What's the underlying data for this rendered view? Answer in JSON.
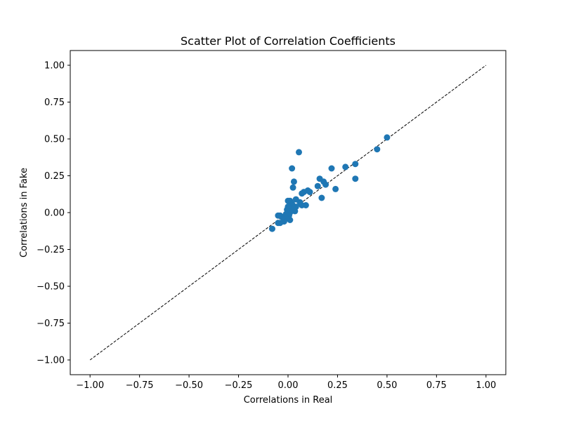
{
  "chart_data": {
    "type": "scatter",
    "title": "Scatter Plot of Correlation Coefficients",
    "xlabel": "Correlations in Real",
    "ylabel": "Correlations in Fake",
    "xlim": [
      -1.1,
      1.1
    ],
    "ylim": [
      -1.1,
      1.1
    ],
    "xticks": [
      -1.0,
      -0.75,
      -0.5,
      -0.25,
      0.0,
      0.25,
      0.5,
      0.75,
      1.0
    ],
    "yticks": [
      -1.0,
      -0.75,
      -0.5,
      -0.25,
      0.0,
      0.25,
      0.5,
      0.75,
      1.0
    ],
    "xtick_labels": [
      "−1.00",
      "−0.75",
      "−0.50",
      "−0.25",
      "0.00",
      "0.25",
      "0.50",
      "0.75",
      "1.00"
    ],
    "ytick_labels": [
      "−1.00",
      "−0.75",
      "−0.50",
      "−0.25",
      "0.00",
      "0.25",
      "0.50",
      "0.75",
      "1.00"
    ],
    "grid": false,
    "marker_color": "#1f77b4",
    "reference_line": {
      "x": [
        -1.0,
        1.0
      ],
      "y": [
        -1.0,
        1.0
      ],
      "style": "dashed",
      "color": "#000000"
    },
    "points": [
      {
        "x": 0.5,
        "y": 0.51
      },
      {
        "x": 0.45,
        "y": 0.43
      },
      {
        "x": 0.34,
        "y": 0.33
      },
      {
        "x": 0.34,
        "y": 0.23
      },
      {
        "x": 0.29,
        "y": 0.31
      },
      {
        "x": 0.24,
        "y": 0.16
      },
      {
        "x": 0.22,
        "y": 0.3
      },
      {
        "x": 0.19,
        "y": 0.19
      },
      {
        "x": 0.18,
        "y": 0.21
      },
      {
        "x": 0.17,
        "y": 0.1
      },
      {
        "x": 0.16,
        "y": 0.23
      },
      {
        "x": 0.15,
        "y": 0.18
      },
      {
        "x": 0.11,
        "y": 0.14
      },
      {
        "x": 0.1,
        "y": 0.15
      },
      {
        "x": 0.09,
        "y": 0.05
      },
      {
        "x": 0.08,
        "y": 0.14
      },
      {
        "x": 0.07,
        "y": 0.13
      },
      {
        "x": 0.07,
        "y": 0.05
      },
      {
        "x": 0.06,
        "y": 0.07
      },
      {
        "x": 0.055,
        "y": 0.41
      },
      {
        "x": 0.04,
        "y": 0.09
      },
      {
        "x": 0.04,
        "y": 0.04
      },
      {
        "x": 0.035,
        "y": 0.01
      },
      {
        "x": 0.03,
        "y": 0.21
      },
      {
        "x": 0.025,
        "y": 0.17
      },
      {
        "x": 0.02,
        "y": 0.3
      },
      {
        "x": 0.02,
        "y": 0.06
      },
      {
        "x": 0.015,
        "y": 0.03
      },
      {
        "x": 0.01,
        "y": 0.08
      },
      {
        "x": 0.01,
        "y": 0.0
      },
      {
        "x": 0.01,
        "y": -0.05
      },
      {
        "x": 0.005,
        "y": -0.02
      },
      {
        "x": 0.0,
        "y": 0.08
      },
      {
        "x": 0.0,
        "y": 0.04
      },
      {
        "x": -0.005,
        "y": 0.02
      },
      {
        "x": -0.01,
        "y": -0.01
      },
      {
        "x": -0.01,
        "y": -0.04
      },
      {
        "x": -0.02,
        "y": -0.06
      },
      {
        "x": -0.03,
        "y": -0.03
      },
      {
        "x": -0.04,
        "y": -0.02
      },
      {
        "x": -0.04,
        "y": -0.07
      },
      {
        "x": -0.05,
        "y": -0.02
      },
      {
        "x": -0.05,
        "y": -0.07
      },
      {
        "x": -0.08,
        "y": -0.11
      }
    ]
  }
}
